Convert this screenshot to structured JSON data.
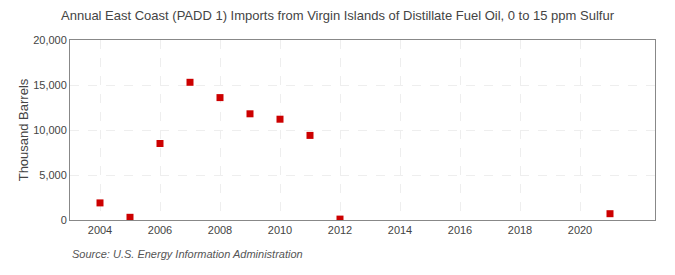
{
  "chart_data": {
    "type": "scatter",
    "title": "Annual East Coast (PADD 1) Imports from Virgin Islands of Distillate Fuel Oil, 0 to 15 ppm Sulfur",
    "ylabel": "Thousand Barrels",
    "annotations": [
      "Source: U.S. Energy Information Administration"
    ],
    "x": [
      2004,
      2005,
      2006,
      2007,
      2008,
      2009,
      2010,
      2011,
      2012,
      2021
    ],
    "values": [
      1900,
      300,
      8500,
      15300,
      13600,
      11800,
      11200,
      9400,
      100,
      700
    ],
    "color": "#cc0000",
    "marker": "square",
    "xlim": [
      2003,
      2022.5
    ],
    "ylim": [
      0,
      20000
    ],
    "xticks": [
      2004,
      2006,
      2008,
      2010,
      2012,
      2014,
      2016,
      2018,
      2020
    ],
    "yticks": [
      0,
      {
        "value": 5000,
        "label": "5,000"
      },
      {
        "value": 10000,
        "label": "10,000"
      },
      {
        "value": 15000,
        "label": "15,000"
      },
      {
        "value": 20000,
        "label": "20,000"
      }
    ],
    "grid": true
  }
}
